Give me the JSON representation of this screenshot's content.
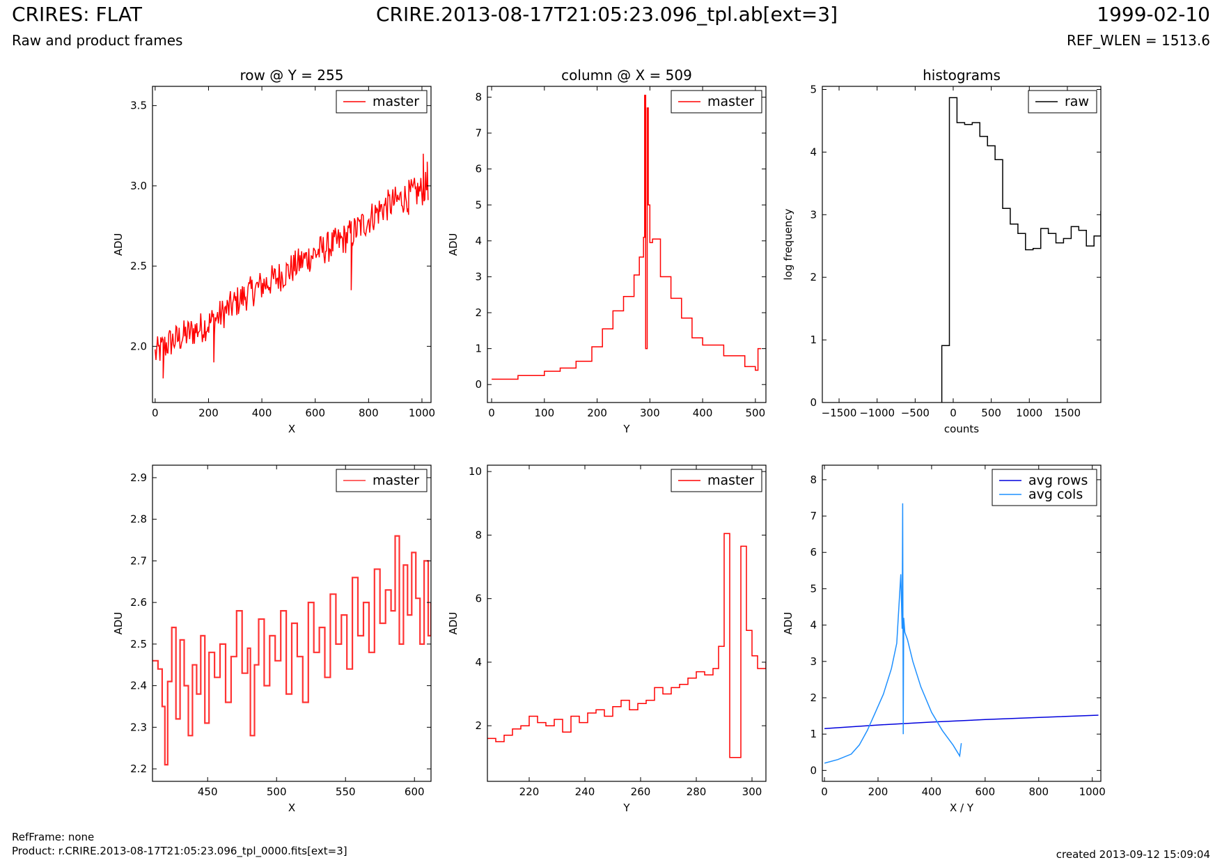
{
  "header": {
    "title_left": "CRIRES: FLAT",
    "title_center": "CRIRE.2013-08-17T21:05:23.096_tpl.ab[ext=3]",
    "title_right": "1999-02-10",
    "subtitle_left": "Raw and product frames",
    "subtitle_right": "REF_WLEN = 1513.6"
  },
  "footer": {
    "ref_frame": "RefFrame: none",
    "product": "Product: r.CRIRE.2013-08-17T21:05:23.096_tpl_0000.fits[ext=3]",
    "created": "created 2013-09-12 15:09:04"
  },
  "colors": {
    "master": "#ff0000",
    "master_zoom": "#ff3333",
    "raw": "#000000",
    "avg_rows": "#0000dd",
    "avg_cols": "#1e90ff"
  },
  "chart_data": [
    {
      "type": "line",
      "title": "row @ Y = 255",
      "xlabel": "X",
      "ylabel": "ADU",
      "xlim": [
        -10,
        1034
      ],
      "ylim": [
        1.65,
        3.62
      ],
      "xticks": [
        0,
        200,
        400,
        600,
        800,
        1000
      ],
      "yticks": [
        2.0,
        2.5,
        3.0,
        3.5
      ],
      "ytick_labels": [
        "2.0",
        "2.5",
        "3.0",
        "3.5"
      ],
      "legend": "top-right",
      "series": [
        {
          "name": "master",
          "color": "#ff0000",
          "step": false,
          "x": [
            0,
            50,
            100,
            150,
            200,
            250,
            300,
            350,
            400,
            450,
            500,
            550,
            600,
            650,
            700,
            750,
            800,
            850,
            900,
            950,
            1000,
            1023
          ],
          "y": [
            1.95,
            2.02,
            2.06,
            2.1,
            2.14,
            2.2,
            2.27,
            2.33,
            2.38,
            2.42,
            2.47,
            2.53,
            2.58,
            2.62,
            2.66,
            2.72,
            2.79,
            2.86,
            2.9,
            2.94,
            2.97,
            3.0
          ],
          "spikes": [
            [
              30,
              1.8
            ],
            [
              220,
              1.9
            ],
            [
              735,
              2.35
            ],
            [
              950,
              2.82
            ],
            [
              1005,
              3.2
            ],
            [
              1020,
              3.15
            ]
          ]
        }
      ]
    },
    {
      "type": "line",
      "title": "column @ X = 509",
      "xlabel": "Y",
      "ylabel": "ADU",
      "xlim": [
        -8,
        520
      ],
      "ylim": [
        -0.5,
        8.3
      ],
      "xticks": [
        0,
        100,
        200,
        300,
        400,
        500
      ],
      "yticks": [
        0,
        1,
        2,
        3,
        4,
        5,
        6,
        7,
        8
      ],
      "ytick_labels": [
        "0",
        "1",
        "2",
        "3",
        "4",
        "5",
        "6",
        "7",
        "8"
      ],
      "legend": "top-right",
      "series": [
        {
          "name": "master",
          "color": "#ff0000",
          "step": true,
          "x": [
            0,
            50,
            100,
            130,
            160,
            190,
            210,
            230,
            250,
            270,
            280,
            288,
            290,
            292,
            293,
            295,
            297,
            300,
            305,
            320,
            340,
            360,
            380,
            400,
            440,
            480,
            500,
            505,
            511
          ],
          "y": [
            0.15,
            0.25,
            0.37,
            0.46,
            0.65,
            1.05,
            1.55,
            2.05,
            2.45,
            3.05,
            3.55,
            4.1,
            8.05,
            1.0,
            1.0,
            7.7,
            5.0,
            3.95,
            4.05,
            3.0,
            2.4,
            1.85,
            1.3,
            1.1,
            0.8,
            0.5,
            0.4,
            1.0,
            1.0
          ]
        }
      ]
    },
    {
      "type": "line",
      "title": "histograms",
      "xlabel": "counts",
      "ylabel": "log frequency",
      "xlim": [
        -1720,
        1940
      ],
      "ylim": [
        0,
        5.05
      ],
      "xticks": [
        -1500,
        -1000,
        -500,
        0,
        500,
        1000,
        1500
      ],
      "xtick_labels": [
        "−1500",
        "−1000",
        "−500",
        "0",
        "500",
        "1000",
        "1500"
      ],
      "yticks": [
        0,
        1,
        2,
        3,
        4,
        5
      ],
      "ytick_labels": [
        "0",
        "1",
        "2",
        "3",
        "4",
        "5"
      ],
      "legend": "top-right",
      "series": [
        {
          "name": "raw",
          "color": "#000000",
          "step": true,
          "x": [
            -150,
            -150,
            -50,
            50,
            150,
            250,
            350,
            450,
            550,
            650,
            750,
            850,
            950,
            1050,
            1150,
            1250,
            1350,
            1450,
            1550,
            1650,
            1750,
            1850,
            1940
          ],
          "y": [
            0,
            0.91,
            4.87,
            4.47,
            4.44,
            4.47,
            4.25,
            4.1,
            3.88,
            3.1,
            2.85,
            2.7,
            2.44,
            2.46,
            2.78,
            2.7,
            2.55,
            2.62,
            2.81,
            2.75,
            2.5,
            2.66,
            3.06
          ]
        }
      ]
    },
    {
      "type": "line",
      "title": "",
      "xlabel": "X",
      "ylabel": "ADU",
      "xlim": [
        410,
        612
      ],
      "ylim": [
        2.17,
        2.93
      ],
      "xticks": [
        450,
        500,
        550,
        600
      ],
      "yticks": [
        2.2,
        2.3,
        2.4,
        2.5,
        2.6,
        2.7,
        2.8,
        2.9
      ],
      "ytick_labels": [
        "2.2",
        "2.3",
        "2.4",
        "2.5",
        "2.6",
        "2.7",
        "2.8",
        "2.9"
      ],
      "legend": "top-right",
      "series": [
        {
          "name": "master",
          "color": "#ff3333",
          "step": true,
          "x": [
            410,
            414,
            417,
            419,
            421,
            424,
            427,
            430,
            433,
            436,
            439,
            442,
            445,
            448,
            451,
            455,
            459,
            463,
            467,
            471,
            475,
            479,
            481,
            484,
            487,
            491,
            495,
            499,
            503,
            507,
            511,
            515,
            519,
            523,
            527,
            531,
            535,
            539,
            543,
            547,
            551,
            555,
            559,
            563,
            567,
            571,
            575,
            579,
            583,
            586,
            589,
            592,
            595,
            598,
            601,
            604,
            607,
            610,
            612
          ],
          "y": [
            2.46,
            2.44,
            2.35,
            2.21,
            2.41,
            2.54,
            2.32,
            2.51,
            2.4,
            2.28,
            2.45,
            2.38,
            2.52,
            2.31,
            2.48,
            2.42,
            2.5,
            2.36,
            2.47,
            2.58,
            2.43,
            2.49,
            2.28,
            2.45,
            2.56,
            2.4,
            2.52,
            2.46,
            2.58,
            2.38,
            2.55,
            2.47,
            2.36,
            2.6,
            2.48,
            2.54,
            2.42,
            2.62,
            2.5,
            2.57,
            2.44,
            2.66,
            2.52,
            2.6,
            2.48,
            2.68,
            2.55,
            2.63,
            2.58,
            2.76,
            2.5,
            2.69,
            2.57,
            2.72,
            2.61,
            2.5,
            2.7,
            2.52,
            2.6
          ]
        }
      ]
    },
    {
      "type": "line",
      "title": "",
      "xlabel": "Y",
      "ylabel": "ADU",
      "xlim": [
        205,
        305
      ],
      "ylim": [
        0.25,
        10.2
      ],
      "xticks": [
        220,
        240,
        260,
        280,
        300
      ],
      "yticks": [
        2,
        4,
        6,
        8,
        10
      ],
      "ytick_labels": [
        "2",
        "4",
        "6",
        "8",
        "10"
      ],
      "legend": "top-right",
      "series": [
        {
          "name": "master",
          "color": "#ff0000",
          "step": true,
          "x": [
            205,
            208,
            211,
            214,
            217,
            220,
            223,
            226,
            229,
            232,
            235,
            238,
            241,
            244,
            247,
            250,
            253,
            256,
            259,
            262,
            265,
            268,
            271,
            274,
            277,
            280,
            283,
            286,
            288,
            290,
            292,
            294,
            296,
            298,
            300,
            302,
            305
          ],
          "y": [
            1.6,
            1.5,
            1.7,
            1.9,
            2.0,
            2.3,
            2.1,
            2.0,
            2.2,
            1.8,
            2.3,
            2.1,
            2.4,
            2.5,
            2.3,
            2.6,
            2.8,
            2.5,
            2.7,
            2.8,
            3.2,
            3.0,
            3.2,
            3.3,
            3.5,
            3.7,
            3.6,
            3.8,
            4.5,
            8.05,
            1.0,
            1.0,
            7.65,
            5.0,
            4.2,
            3.8,
            4.0
          ]
        }
      ]
    },
    {
      "type": "line",
      "title": "",
      "xlabel": "X / Y",
      "ylabel": "ADU",
      "xlim": [
        -8,
        1032
      ],
      "ylim": [
        -0.3,
        8.4
      ],
      "xticks": [
        0,
        200,
        400,
        600,
        800,
        1000
      ],
      "yticks": [
        0,
        1,
        2,
        3,
        4,
        5,
        6,
        7,
        8
      ],
      "ytick_labels": [
        "0",
        "1",
        "2",
        "3",
        "4",
        "5",
        "6",
        "7",
        "8"
      ],
      "legend": "top-right",
      "series": [
        {
          "name": "avg rows",
          "color": "#0000dd",
          "step": false,
          "x": [
            0,
            200,
            400,
            600,
            800,
            1023
          ],
          "y": [
            1.15,
            1.25,
            1.33,
            1.4,
            1.46,
            1.52
          ]
        },
        {
          "name": "avg cols",
          "color": "#1e90ff",
          "step": false,
          "x": [
            0,
            50,
            100,
            130,
            160,
            190,
            220,
            250,
            270,
            285,
            290,
            292,
            294,
            296,
            298,
            300,
            310,
            330,
            360,
            400,
            440,
            480,
            505,
            511
          ],
          "y": [
            0.2,
            0.3,
            0.45,
            0.7,
            1.1,
            1.6,
            2.1,
            2.8,
            3.5,
            5.4,
            3.9,
            7.35,
            1.0,
            4.2,
            4.0,
            3.8,
            3.6,
            3.0,
            2.3,
            1.6,
            1.1,
            0.7,
            0.4,
            0.75
          ]
        }
      ]
    }
  ]
}
